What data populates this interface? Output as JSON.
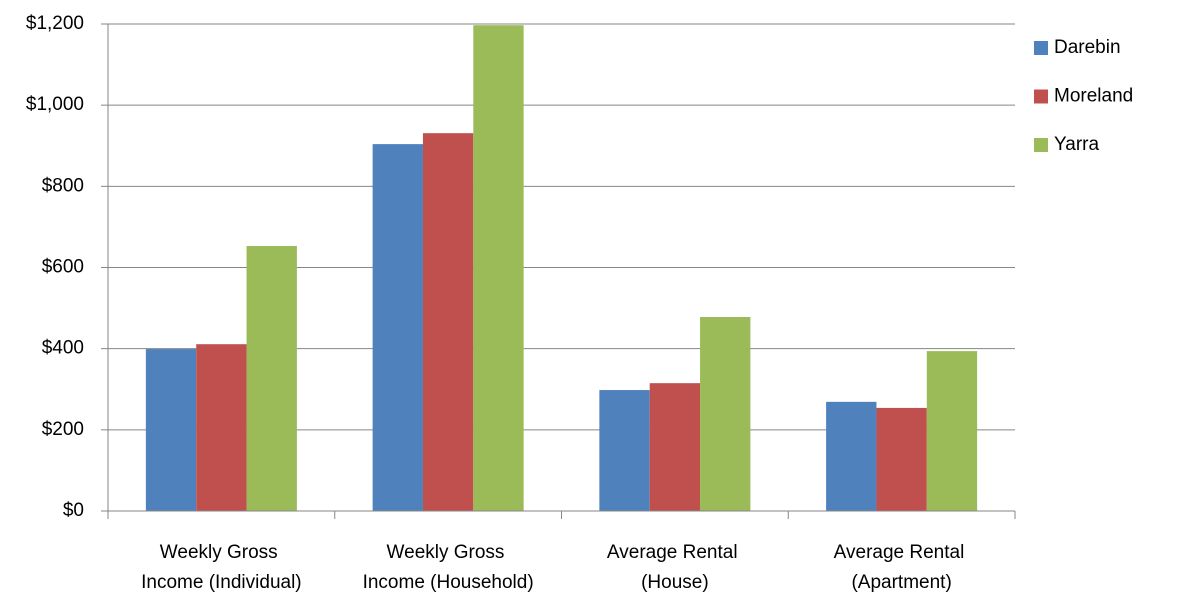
{
  "chart_data": {
    "type": "bar",
    "categories": [
      "Weekly Gross Income (Individual)",
      "Weekly Gross Income (Household)",
      "Average Rental (House)",
      "Average Rental (Apartment)"
    ],
    "series": [
      {
        "name": "Darebin",
        "color": "#4f81bd",
        "values": [
          399,
          904,
          298,
          269
        ]
      },
      {
        "name": "Moreland",
        "color": "#c0504d",
        "values": [
          411,
          931,
          315,
          254
        ]
      },
      {
        "name": "Yarra",
        "color": "#9bbb59",
        "values": [
          653,
          1197,
          478,
          394
        ]
      }
    ],
    "ylim": [
      0,
      1200
    ],
    "yticks": [
      {
        "value": 0,
        "label": "$0"
      },
      {
        "value": 200,
        "label": "$200"
      },
      {
        "value": 400,
        "label": "$400"
      },
      {
        "value": 600,
        "label": "$600"
      },
      {
        "value": 800,
        "label": "$800"
      },
      {
        "value": 1000,
        "label": "$1,000"
      },
      {
        "value": 1200,
        "label": "$1,200"
      }
    ],
    "grid": true,
    "legend": "right"
  }
}
